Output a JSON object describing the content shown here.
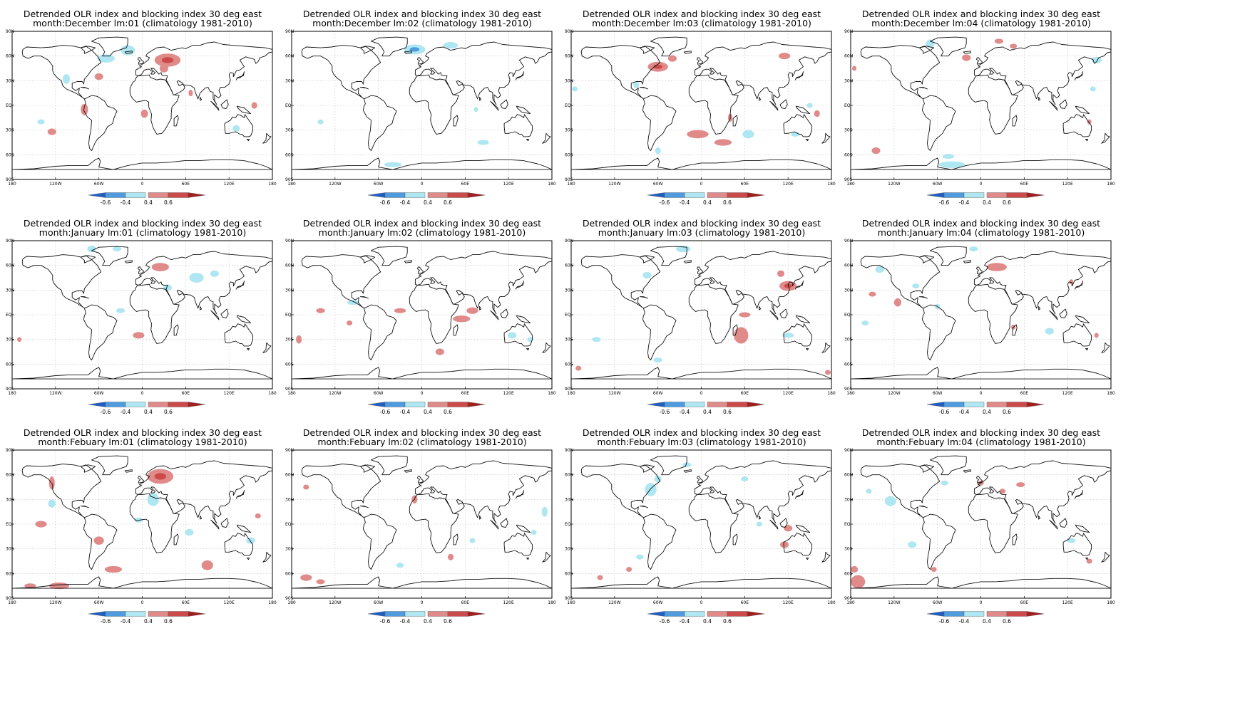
{
  "figure": {
    "title_line1": "Detrended OLR index and blocking index 30 deg east",
    "lat_ticks": [
      "90N",
      "60N",
      "30N",
      "EQ",
      "30S",
      "60S",
      "90S"
    ],
    "lon_ticks": [
      "180",
      "120W",
      "60W",
      "0",
      "60E",
      "120E",
      "180"
    ],
    "colorbar_labels": [
      "-0.6",
      "-0.4",
      "0.4",
      "0.6"
    ],
    "colors": {
      "neg_strong": "#1f5fc4",
      "neg_mid": "#4f9be0",
      "neg_light": "#aee6f2",
      "pos_light": "#e08a8a",
      "pos_mid": "#cc4a4a",
      "pos_strong": "#a41e1e"
    }
  },
  "panels": [
    {
      "title_line2": "month:December lm:01 (climatology 1981-2010)",
      "month": "December",
      "lead": "01",
      "patches": [
        [
          "p",
          35,
          55,
          18,
          8
        ],
        [
          "p",
          30,
          45,
          6,
          5
        ],
        [
          "n",
          -20,
          67,
          10,
          6
        ],
        [
          "n",
          -50,
          57,
          12,
          5
        ],
        [
          "n",
          -105,
          32,
          5,
          6
        ],
        [
          "p",
          -60,
          35,
          6,
          4
        ],
        [
          "p",
          -80,
          -5,
          5,
          7
        ],
        [
          "p",
          3,
          -10,
          5,
          5
        ],
        [
          "p",
          -125,
          -32,
          6,
          4
        ],
        [
          "n",
          -140,
          -20,
          5,
          3
        ],
        [
          "p",
          67,
          15,
          3,
          4
        ],
        [
          "n",
          130,
          -28,
          5,
          4
        ],
        [
          "p",
          155,
          0,
          4,
          4
        ]
      ]
    },
    {
      "title_line2": "month:December lm:02 (climatology 1981-2010)",
      "month": "December",
      "lead": "02",
      "patches": [
        [
          "n",
          -10,
          68,
          15,
          6
        ],
        [
          "n",
          40,
          73,
          10,
          4
        ],
        [
          "n",
          85,
          -45,
          8,
          3
        ],
        [
          "n",
          -40,
          -72,
          12,
          3
        ],
        [
          "n",
          -140,
          -20,
          4,
          3
        ],
        [
          "n",
          75,
          -5,
          3,
          3
        ]
      ]
    },
    {
      "title_line2": "month:December lm:03 (climatology 1981-2010)",
      "month": "December",
      "lead": "03",
      "patches": [
        [
          "p",
          -60,
          47,
          14,
          6
        ],
        [
          "p",
          -40,
          57,
          6,
          4
        ],
        [
          "p",
          115,
          60,
          8,
          4
        ],
        [
          "p",
          -5,
          -35,
          15,
          5
        ],
        [
          "p",
          30,
          -45,
          12,
          4
        ],
        [
          "n",
          65,
          -35,
          8,
          5
        ],
        [
          "n",
          130,
          -35,
          6,
          3
        ],
        [
          "n",
          -60,
          -55,
          4,
          4
        ],
        [
          "p",
          160,
          -10,
          4,
          4
        ],
        [
          "n",
          -90,
          25,
          4,
          4
        ],
        [
          "n",
          -175,
          20,
          4,
          3
        ],
        [
          "p",
          40,
          -15,
          3,
          5
        ],
        [
          "n",
          150,
          0,
          4,
          3
        ]
      ]
    },
    {
      "title_line2": "month:December lm:04 (climatology 1981-2010)",
      "month": "December",
      "lead": "04",
      "patches": [
        [
          "p",
          -20,
          58,
          6,
          4
        ],
        [
          "p",
          25,
          78,
          6,
          3
        ],
        [
          "p",
          45,
          72,
          5,
          3
        ],
        [
          "n",
          160,
          55,
          7,
          4
        ],
        [
          "n",
          -70,
          75,
          6,
          5
        ],
        [
          "p",
          -145,
          -55,
          6,
          4
        ],
        [
          "n",
          -40,
          -72,
          18,
          4
        ],
        [
          "n",
          -45,
          -62,
          8,
          3
        ],
        [
          "p",
          150,
          -20,
          3,
          3
        ],
        [
          "p",
          -175,
          45,
          3,
          3
        ],
        [
          "n",
          155,
          20,
          4,
          3
        ]
      ]
    },
    {
      "title_line2": "month:January lm:01 (climatology 1981-2010)",
      "month": "January",
      "lead": "01",
      "patches": [
        [
          "p",
          25,
          58,
          12,
          5
        ],
        [
          "n",
          75,
          45,
          10,
          6
        ],
        [
          "n",
          100,
          50,
          6,
          4
        ],
        [
          "n",
          35,
          33,
          6,
          4
        ],
        [
          "n",
          -30,
          5,
          6,
          3
        ],
        [
          "p",
          -5,
          -25,
          8,
          4
        ],
        [
          "n",
          -70,
          80,
          6,
          4
        ],
        [
          "p",
          -170,
          -30,
          3,
          3
        ],
        [
          "n",
          -35,
          80,
          6,
          3
        ]
      ]
    },
    {
      "title_line2": "month:January lm:02 (climatology 1981-2010)",
      "month": "January",
      "lead": "02",
      "patches": [
        [
          "p",
          55,
          -5,
          12,
          4
        ],
        [
          "p",
          70,
          5,
          8,
          4
        ],
        [
          "p",
          -30,
          5,
          8,
          3
        ],
        [
          "p",
          -140,
          5,
          6,
          3
        ],
        [
          "p",
          -170,
          -30,
          4,
          5
        ],
        [
          "p",
          25,
          -45,
          6,
          4
        ],
        [
          "n",
          -95,
          15,
          8,
          3
        ],
        [
          "n",
          125,
          -25,
          6,
          4
        ],
        [
          "n",
          150,
          -30,
          4,
          3
        ],
        [
          "p",
          -100,
          -10,
          4,
          3
        ]
      ]
    },
    {
      "title_line2": "month:January lm:03 (climatology 1981-2010)",
      "month": "January",
      "lead": "03",
      "patches": [
        [
          "p",
          120,
          35,
          12,
          6
        ],
        [
          "p",
          110,
          50,
          5,
          4
        ],
        [
          "p",
          55,
          -25,
          10,
          10
        ],
        [
          "p",
          60,
          0,
          8,
          3
        ],
        [
          "n",
          -25,
          80,
          10,
          4
        ],
        [
          "n",
          -75,
          48,
          6,
          4
        ],
        [
          "n",
          -145,
          -30,
          6,
          3
        ],
        [
          "n",
          -60,
          -55,
          6,
          3
        ],
        [
          "p",
          -170,
          -65,
          4,
          3
        ],
        [
          "p",
          175,
          -70,
          4,
          3
        ],
        [
          "n",
          120,
          -25,
          8,
          3
        ]
      ]
    },
    {
      "title_line2": "month:January lm:04 (climatology 1981-2010)",
      "month": "January",
      "lead": "04",
      "patches": [
        [
          "p",
          22,
          58,
          14,
          5
        ],
        [
          "p",
          -150,
          25,
          5,
          3
        ],
        [
          "p",
          -115,
          15,
          5,
          5
        ],
        [
          "n",
          -140,
          55,
          6,
          4
        ],
        [
          "n",
          -90,
          35,
          5,
          3
        ],
        [
          "n",
          -160,
          -10,
          5,
          3
        ],
        [
          "p",
          125,
          40,
          3,
          3
        ],
        [
          "n",
          95,
          -20,
          6,
          4
        ],
        [
          "p",
          160,
          -25,
          3,
          3
        ],
        [
          "n",
          -10,
          80,
          6,
          3
        ],
        [
          "p",
          45,
          -15,
          3,
          3
        ],
        [
          "n",
          -60,
          10,
          4,
          3
        ]
      ]
    },
    {
      "title_line2": "month:Febuary lm:01 (climatology 1981-2010)",
      "month": "Febuary",
      "lead": "01",
      "patches": [
        [
          "p",
          25,
          58,
          18,
          9
        ],
        [
          "p",
          -125,
          50,
          4,
          8
        ],
        [
          "n",
          -125,
          25,
          5,
          5
        ],
        [
          "n",
          15,
          30,
          8,
          8
        ],
        [
          "n",
          -5,
          5,
          6,
          3
        ],
        [
          "p",
          -140,
          0,
          8,
          4
        ],
        [
          "p",
          -60,
          -20,
          7,
          5
        ],
        [
          "p",
          -40,
          -55,
          12,
          4
        ],
        [
          "p",
          -115,
          -75,
          14,
          4
        ],
        [
          "p",
          -155,
          -75,
          8,
          3
        ],
        [
          "p",
          90,
          -50,
          8,
          6
        ],
        [
          "n",
          150,
          -20,
          6,
          4
        ],
        [
          "n",
          65,
          -10,
          6,
          4
        ],
        [
          "p",
          160,
          10,
          4,
          3
        ]
      ]
    },
    {
      "title_line2": "month:Febuary lm:02 (climatology 1981-2010)",
      "month": "Febuary",
      "lead": "02",
      "patches": [
        [
          "p",
          -10,
          30,
          4,
          5
        ],
        [
          "p",
          -160,
          -65,
          8,
          4
        ],
        [
          "p",
          -140,
          -70,
          6,
          3
        ],
        [
          "p",
          -160,
          45,
          4,
          3
        ],
        [
          "n",
          170,
          15,
          4,
          6
        ],
        [
          "n",
          155,
          -10,
          4,
          3
        ],
        [
          "p",
          40,
          -40,
          4,
          4
        ],
        [
          "n",
          70,
          -20,
          4,
          3
        ],
        [
          "n",
          -30,
          -50,
          5,
          3
        ]
      ]
    },
    {
      "title_line2": "month:Febuary lm:03 (climatology 1981-2010)",
      "month": "Febuary",
      "lead": "03",
      "patches": [
        [
          "n",
          -70,
          42,
          8,
          8
        ],
        [
          "n",
          -60,
          55,
          5,
          4
        ],
        [
          "p",
          120,
          -5,
          6,
          4
        ],
        [
          "p",
          115,
          -25,
          6,
          4
        ],
        [
          "p",
          -140,
          -65,
          4,
          3
        ],
        [
          "p",
          -100,
          -55,
          4,
          3
        ],
        [
          "n",
          -85,
          -40,
          5,
          3
        ],
        [
          "n",
          60,
          55,
          5,
          3
        ],
        [
          "n",
          80,
          0,
          4,
          3
        ],
        [
          "n",
          -20,
          72,
          6,
          3
        ]
      ]
    },
    {
      "title_line2": "month:Febuary lm:04 (climatology 1981-2010)",
      "month": "Febuary",
      "lead": "04",
      "patches": [
        [
          "p",
          -170,
          -70,
          10,
          8
        ],
        [
          "p",
          -175,
          -55,
          5,
          4
        ],
        [
          "n",
          -125,
          28,
          8,
          6
        ],
        [
          "n",
          -155,
          40,
          4,
          3
        ],
        [
          "p",
          30,
          40,
          4,
          3
        ],
        [
          "p",
          55,
          48,
          6,
          3
        ],
        [
          "p",
          0,
          50,
          4,
          3
        ],
        [
          "n",
          -95,
          -25,
          6,
          4
        ],
        [
          "n",
          -50,
          50,
          5,
          3
        ],
        [
          "p",
          -65,
          -55,
          4,
          3
        ],
        [
          "n",
          125,
          -20,
          6,
          3
        ],
        [
          "p",
          150,
          -45,
          4,
          3
        ]
      ]
    }
  ]
}
